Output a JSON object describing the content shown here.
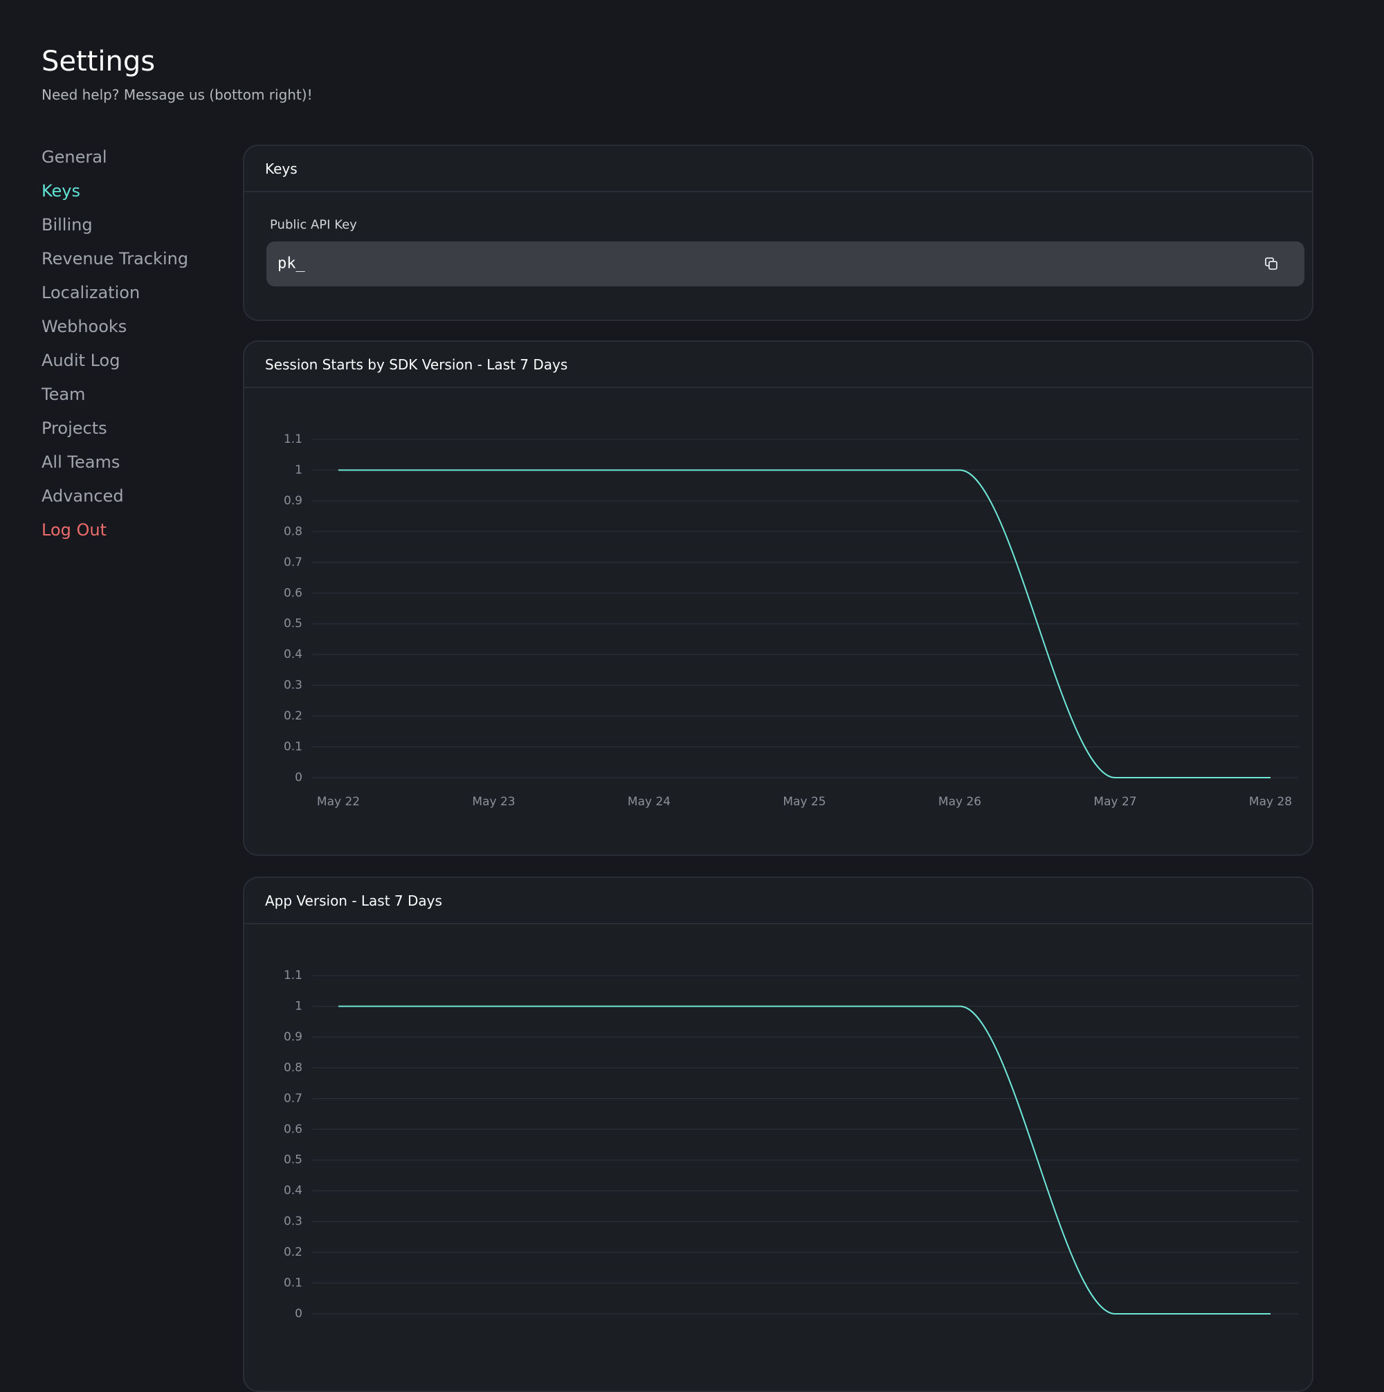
{
  "header": {
    "title": "Settings",
    "subtitle": "Need help? Message us (bottom right)!"
  },
  "nav": {
    "items": [
      {
        "label": "General",
        "color": "#a2a5ab"
      },
      {
        "label": "Keys",
        "color": "#62e3d6"
      },
      {
        "label": "Billing",
        "color": "#a2a5ab"
      },
      {
        "label": "Revenue Tracking",
        "color": "#a2a5ab"
      },
      {
        "label": "Localization",
        "color": "#a2a5ab"
      },
      {
        "label": "Webhooks",
        "color": "#a2a5ab"
      },
      {
        "label": "Audit Log",
        "color": "#a2a5ab"
      },
      {
        "label": "Team",
        "color": "#a2a5ab"
      },
      {
        "label": "Projects",
        "color": "#a2a5ab"
      },
      {
        "label": "All Teams",
        "color": "#a2a5ab"
      },
      {
        "label": "Advanced",
        "color": "#a2a5ab"
      },
      {
        "label": "Log Out",
        "color": "#ec6b6b"
      }
    ]
  },
  "keys_panel": {
    "title": "Keys",
    "field_label": "Public API Key",
    "value": "pk_"
  },
  "chart_data": [
    {
      "type": "line",
      "title": "Session Starts by SDK Version - Last 7 Days",
      "categories": [
        "May 22",
        "May 23",
        "May 24",
        "May 25",
        "May 26",
        "May 27",
        "May 28"
      ],
      "values": [
        1,
        1,
        1,
        1,
        1,
        0,
        0
      ],
      "color": "#6fe8da",
      "ylim": [
        0,
        1.1
      ],
      "yticks": [
        0,
        0.1,
        0.2,
        0.3,
        0.4,
        0.5,
        0.6,
        0.7,
        0.8,
        0.9,
        1,
        1.1
      ],
      "grid": true
    },
    {
      "type": "line",
      "title": "App Version - Last 7 Days",
      "categories": [
        null,
        null,
        null,
        null,
        null,
        null,
        null
      ],
      "values": [
        1,
        1,
        1,
        1,
        1,
        0,
        0
      ],
      "color": "#6fe8da",
      "ylim": [
        0,
        1.1
      ],
      "yticks": [
        0,
        0.1,
        0.2,
        0.3,
        0.4,
        0.5,
        0.6,
        0.7,
        0.8,
        0.9,
        1,
        1.1
      ],
      "grid": true
    }
  ]
}
